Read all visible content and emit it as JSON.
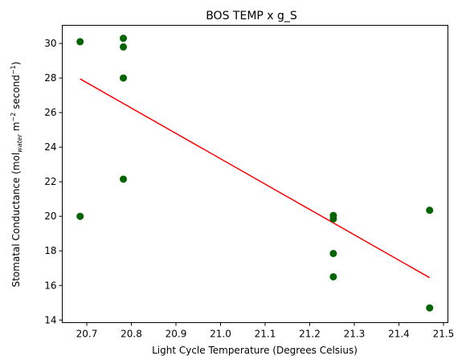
{
  "chart_data": {
    "type": "scatter",
    "title": "BOS TEMP x g_S",
    "xlabel": "Light Cycle Temperature (Degrees Celsius)",
    "ylabel": {
      "prefix": "Stomatal Conductance (mol",
      "sub": "water",
      "mid": " m",
      "sup1": "−2",
      "mid2": " second",
      "sup2": "−1",
      "suffix": ")"
    },
    "xlim": [
      20.645,
      21.51
    ],
    "ylim": [
      13.85,
      31.05
    ],
    "xticks": [
      20.7,
      20.8,
      20.9,
      21.0,
      21.1,
      21.2,
      21.3,
      21.4,
      21.5
    ],
    "xtick_labels": [
      "20.7",
      "20.8",
      "20.9",
      "21.0",
      "21.1",
      "21.2",
      "21.3",
      "21.4",
      "21.5"
    ],
    "yticks": [
      14,
      16,
      18,
      20,
      22,
      24,
      26,
      28,
      30
    ],
    "ytick_labels": [
      "14",
      "16",
      "18",
      "20",
      "22",
      "24",
      "26",
      "28",
      "30"
    ],
    "grid": false,
    "points": [
      {
        "x": 20.685,
        "y": 30.1
      },
      {
        "x": 20.685,
        "y": 20.0
      },
      {
        "x": 20.782,
        "y": 30.3
      },
      {
        "x": 20.782,
        "y": 29.8
      },
      {
        "x": 20.782,
        "y": 28.0
      },
      {
        "x": 20.782,
        "y": 22.15
      },
      {
        "x": 21.253,
        "y": 20.05
      },
      {
        "x": 21.253,
        "y": 19.85
      },
      {
        "x": 21.253,
        "y": 17.85
      },
      {
        "x": 21.253,
        "y": 16.5
      },
      {
        "x": 21.469,
        "y": 20.35
      },
      {
        "x": 21.469,
        "y": 14.7
      }
    ],
    "fit_line": [
      {
        "x": 20.685,
        "y": 27.95
      },
      {
        "x": 21.469,
        "y": 16.45
      }
    ],
    "colors": {
      "points": "#006400",
      "fit_line": "#ff0000",
      "axes": "#000000"
    }
  }
}
